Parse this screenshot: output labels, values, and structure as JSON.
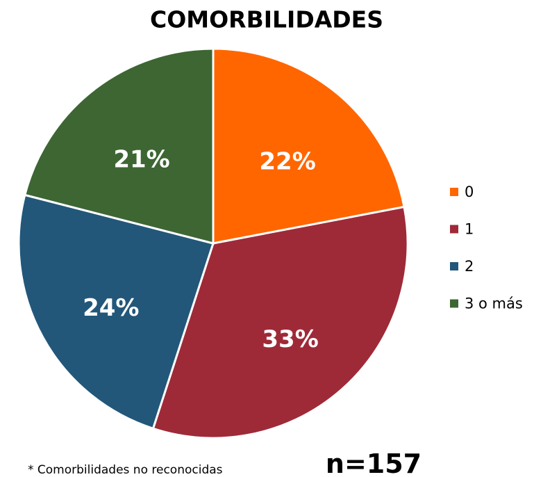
{
  "chart_data": {
    "type": "pie",
    "title": "COMORBILIDADES",
    "categories": [
      "0",
      "1",
      "2",
      "3 o más"
    ],
    "values": [
      22,
      33,
      24,
      21
    ],
    "value_labels": [
      "22%",
      "33%",
      "24%",
      "21%"
    ],
    "colors": [
      "#ff6600",
      "#9e2a38",
      "#22577a",
      "#3d6633"
    ],
    "legend": "right",
    "footnote": "* Comorbilidades no reconocidas",
    "annotation": "n=157"
  }
}
